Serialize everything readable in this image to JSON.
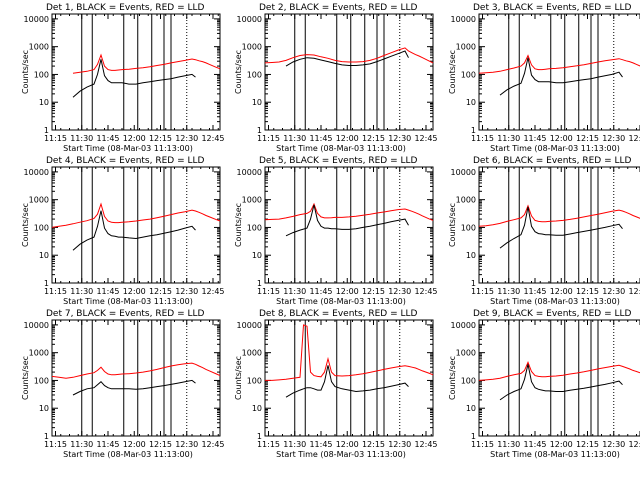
{
  "common": {
    "title_suffix": "BLACK = Events, RED = LLD",
    "xlabel": "Start Time (08-Mar-03 11:13:00)",
    "ylabel": "Counts/sec",
    "x_ticks": [
      "11:15",
      "11:30",
      "11:45",
      "12:00",
      "12:15",
      "12:30",
      "12:45"
    ],
    "y_ticks": [
      "1",
      "10",
      "100",
      "1000",
      "10000"
    ],
    "colors": {
      "events": "#000000",
      "lld": "#ff0000",
      "axes": "#000000"
    }
  },
  "chart_data": [
    {
      "type": "line",
      "title_prefix": "Det 1",
      "xlim_minutes_after_start": [
        0,
        96
      ],
      "ylim": [
        1,
        15000
      ],
      "yscale": "log",
      "solid_vlines": [
        "11:30",
        "11:36",
        "11:54",
        "12:02",
        "12:10",
        "12:17",
        "12:21"
      ],
      "dotted_vlines": [
        "12:30"
      ],
      "x": [
        0,
        4,
        8,
        12,
        16,
        20,
        24,
        26,
        28,
        30,
        32,
        34,
        36,
        38,
        40,
        44,
        48,
        52,
        56,
        60,
        64,
        68,
        72,
        76,
        80,
        82,
        84,
        86,
        88,
        90,
        94,
        96
      ],
      "series": [
        {
          "name": "LLD",
          "values": [
            null,
            null,
            null,
            110,
            120,
            130,
            150,
            230,
            500,
            200,
            150,
            140,
            140,
            145,
            150,
            155,
            165,
            175,
            190,
            210,
            230,
            260,
            290,
            320,
            360,
            340,
            310,
            290,
            260,
            230,
            180,
            160
          ]
        },
        {
          "name": "Events",
          "values": [
            null,
            null,
            null,
            15,
            25,
            35,
            45,
            100,
            350,
            90,
            60,
            50,
            50,
            50,
            50,
            45,
            45,
            50,
            55,
            60,
            65,
            70,
            80,
            90,
            100,
            80,
            null,
            null,
            null,
            null,
            null,
            null
          ]
        }
      ]
    },
    {
      "type": "line",
      "title_prefix": "Det 2",
      "xlim_minutes_after_start": [
        0,
        96
      ],
      "ylim": [
        1,
        15000
      ],
      "yscale": "log",
      "solid_vlines": [
        "11:30",
        "11:36",
        "11:54",
        "12:02",
        "12:10",
        "12:17",
        "12:21"
      ],
      "dotted_vlines": [
        "12:30"
      ],
      "x": [
        0,
        4,
        8,
        12,
        16,
        20,
        24,
        28,
        32,
        36,
        40,
        44,
        48,
        52,
        56,
        60,
        64,
        68,
        72,
        76,
        80,
        82,
        84,
        86,
        88,
        90,
        94,
        96
      ],
      "series": [
        {
          "name": "LLD",
          "values": [
            260,
            270,
            280,
            320,
            400,
            480,
            520,
            500,
            430,
            380,
            320,
            290,
            280,
            280,
            290,
            320,
            380,
            480,
            600,
            750,
            900,
            700,
            600,
            520,
            460,
            400,
            300,
            260
          ]
        },
        {
          "name": "Events",
          "values": [
            null,
            null,
            null,
            200,
            280,
            350,
            400,
            380,
            330,
            290,
            250,
            220,
            210,
            210,
            220,
            240,
            290,
            360,
            450,
            560,
            700,
            400,
            null,
            null,
            null,
            null,
            null,
            null
          ]
        }
      ]
    },
    {
      "type": "line",
      "title_prefix": "Det 3",
      "xlim_minutes_after_start": [
        0,
        96
      ],
      "ylim": [
        1,
        15000
      ],
      "yscale": "log",
      "solid_vlines": [
        "11:30",
        "11:36",
        "11:54",
        "12:02",
        "12:10",
        "12:17",
        "12:21"
      ],
      "dotted_vlines": [
        "12:30"
      ],
      "x": [
        0,
        4,
        8,
        12,
        16,
        20,
        24,
        26,
        28,
        30,
        32,
        34,
        36,
        38,
        40,
        44,
        48,
        52,
        56,
        60,
        64,
        68,
        72,
        76,
        80,
        82,
        84,
        86,
        88,
        90,
        94,
        96
      ],
      "series": [
        {
          "name": "LLD",
          "values": [
            110,
            115,
            120,
            130,
            150,
            170,
            200,
            260,
            480,
            220,
            160,
            150,
            150,
            155,
            160,
            165,
            175,
            190,
            205,
            225,
            250,
            280,
            310,
            340,
            370,
            340,
            310,
            290,
            260,
            230,
            180,
            160
          ]
        },
        {
          "name": "Events",
          "values": [
            null,
            null,
            null,
            18,
            28,
            38,
            48,
            110,
            400,
            95,
            65,
            55,
            55,
            55,
            55,
            50,
            50,
            55,
            60,
            65,
            70,
            80,
            90,
            100,
            120,
            80,
            null,
            null,
            null,
            null,
            null,
            null
          ]
        }
      ]
    },
    {
      "type": "line",
      "title_prefix": "Det 4",
      "xlim_minutes_after_start": [
        0,
        96
      ],
      "ylim": [
        1,
        15000
      ],
      "yscale": "log",
      "solid_vlines": [
        "11:30",
        "11:36",
        "11:54",
        "12:02",
        "12:10",
        "12:17",
        "12:21"
      ],
      "dotted_vlines": [
        "12:30"
      ],
      "x": [
        0,
        4,
        8,
        12,
        16,
        20,
        24,
        26,
        28,
        30,
        32,
        34,
        36,
        38,
        40,
        44,
        48,
        52,
        56,
        60,
        64,
        68,
        72,
        76,
        80,
        82,
        84,
        86,
        88,
        90,
        94,
        96
      ],
      "series": [
        {
          "name": "LLD",
          "values": [
            100,
            110,
            120,
            135,
            155,
            175,
            210,
            300,
            700,
            250,
            170,
            155,
            150,
            150,
            155,
            160,
            170,
            185,
            200,
            225,
            255,
            290,
            330,
            370,
            420,
            390,
            350,
            310,
            270,
            240,
            190,
            170
          ]
        },
        {
          "name": "Events",
          "values": [
            null,
            null,
            null,
            15,
            25,
            35,
            45,
            110,
            400,
            95,
            60,
            50,
            48,
            45,
            45,
            42,
            40,
            45,
            50,
            55,
            62,
            70,
            80,
            95,
            110,
            80,
            null,
            null,
            null,
            null,
            null,
            null
          ]
        }
      ]
    },
    {
      "type": "line",
      "title_prefix": "Det 5",
      "xlim_minutes_after_start": [
        0,
        96
      ],
      "ylim": [
        1,
        15000
      ],
      "yscale": "log",
      "solid_vlines": [
        "11:30",
        "11:36",
        "11:54",
        "12:02",
        "12:10",
        "12:17",
        "12:21"
      ],
      "dotted_vlines": [
        "12:30"
      ],
      "x": [
        0,
        4,
        8,
        12,
        16,
        20,
        24,
        26,
        28,
        30,
        32,
        34,
        36,
        38,
        40,
        44,
        48,
        52,
        56,
        60,
        64,
        68,
        72,
        76,
        80,
        82,
        84,
        86,
        88,
        90,
        94,
        96
      ],
      "series": [
        {
          "name": "LLD",
          "values": [
            190,
            195,
            200,
            220,
            250,
            290,
            320,
            380,
            700,
            320,
            240,
            220,
            220,
            225,
            230,
            230,
            240,
            255,
            275,
            300,
            330,
            360,
            400,
            440,
            460,
            420,
            380,
            340,
            300,
            260,
            200,
            180
          ]
        },
        {
          "name": "Events",
          "values": [
            null,
            null,
            null,
            50,
            65,
            80,
            95,
            200,
            650,
            180,
            110,
            95,
            95,
            90,
            90,
            85,
            85,
            90,
            100,
            110,
            125,
            140,
            160,
            180,
            200,
            120,
            null,
            null,
            null,
            null,
            null,
            null
          ]
        }
      ]
    },
    {
      "type": "line",
      "title_prefix": "Det 6",
      "xlim_minutes_after_start": [
        0,
        96
      ],
      "ylim": [
        1,
        15000
      ],
      "yscale": "log",
      "solid_vlines": [
        "11:30",
        "11:36",
        "11:54",
        "12:02",
        "12:10",
        "12:17",
        "12:21"
      ],
      "dotted_vlines": [
        "12:30"
      ],
      "x": [
        0,
        4,
        8,
        12,
        16,
        20,
        24,
        26,
        28,
        30,
        32,
        34,
        36,
        38,
        40,
        44,
        48,
        52,
        56,
        60,
        64,
        68,
        72,
        76,
        80,
        82,
        84,
        86,
        88,
        90,
        94,
        96
      ],
      "series": [
        {
          "name": "LLD",
          "values": [
            110,
            115,
            125,
            140,
            165,
            190,
            220,
            290,
            600,
            260,
            180,
            165,
            160,
            160,
            165,
            170,
            180,
            195,
            215,
            240,
            270,
            300,
            340,
            380,
            420,
            390,
            350,
            310,
            270,
            240,
            190,
            170
          ]
        },
        {
          "name": "Events",
          "values": [
            null,
            null,
            null,
            18,
            28,
            40,
            55,
            120,
            550,
            110,
            70,
            60,
            58,
            55,
            55,
            52,
            52,
            58,
            65,
            72,
            80,
            90,
            100,
            115,
            130,
            90,
            null,
            null,
            null,
            null,
            null,
            null
          ]
        }
      ]
    },
    {
      "type": "line",
      "title_prefix": "Det 7",
      "xlim_minutes_after_start": [
        0,
        96
      ],
      "ylim": [
        1,
        15000
      ],
      "yscale": "log",
      "solid_vlines": [
        "11:30",
        "11:36",
        "11:54",
        "12:02",
        "12:10",
        "12:17",
        "12:21"
      ],
      "dotted_vlines": [
        "12:30"
      ],
      "x": [
        0,
        4,
        8,
        12,
        16,
        20,
        24,
        26,
        28,
        30,
        32,
        34,
        36,
        38,
        40,
        44,
        48,
        52,
        56,
        60,
        64,
        68,
        72,
        76,
        80,
        82,
        84,
        86,
        88,
        90,
        94,
        96
      ],
      "series": [
        {
          "name": "LLD",
          "values": [
            140,
            130,
            120,
            130,
            150,
            170,
            190,
            230,
            300,
            210,
            170,
            160,
            160,
            165,
            170,
            175,
            185,
            200,
            220,
            250,
            290,
            330,
            370,
            400,
            420,
            380,
            330,
            290,
            250,
            220,
            170,
            150
          ]
        },
        {
          "name": "Events",
          "values": [
            null,
            null,
            null,
            30,
            40,
            50,
            55,
            70,
            90,
            65,
            55,
            50,
            50,
            50,
            50,
            50,
            48,
            50,
            55,
            60,
            65,
            72,
            80,
            90,
            100,
            80,
            null,
            null,
            null,
            null,
            null,
            null
          ]
        }
      ]
    },
    {
      "type": "line",
      "title_prefix": "Det 8",
      "xlim_minutes_after_start": [
        0,
        96
      ],
      "ylim": [
        1,
        15000
      ],
      "yscale": "log",
      "solid_vlines": [
        "11:30",
        "11:36",
        "11:54",
        "12:02",
        "12:10",
        "12:17",
        "12:21"
      ],
      "dotted_vlines": [
        "12:30"
      ],
      "x": [
        0,
        4,
        8,
        12,
        16,
        20,
        22,
        24,
        26,
        28,
        30,
        32,
        34,
        36,
        38,
        40,
        44,
        48,
        52,
        56,
        60,
        64,
        68,
        72,
        76,
        80,
        82,
        84,
        86,
        88,
        90,
        94,
        96
      ],
      "series": [
        {
          "name": "LLD",
          "values": [
            100,
            100,
            105,
            110,
            120,
            130,
            10000,
            9000,
            200,
            150,
            140,
            135,
            200,
            600,
            200,
            150,
            145,
            150,
            160,
            175,
            195,
            220,
            250,
            280,
            310,
            340,
            320,
            300,
            280,
            250,
            220,
            180,
            160
          ]
        },
        {
          "name": "Events",
          "values": [
            null,
            null,
            null,
            25,
            35,
            45,
            50,
            55,
            55,
            50,
            45,
            45,
            90,
            350,
            90,
            60,
            50,
            45,
            40,
            42,
            45,
            50,
            55,
            62,
            70,
            80,
            60,
            null,
            null,
            null,
            null,
            null,
            null
          ]
        }
      ]
    },
    {
      "type": "line",
      "title_prefix": "Det 9",
      "xlim_minutes_after_start": [
        0,
        96
      ],
      "ylim": [
        1,
        15000
      ],
      "yscale": "log",
      "solid_vlines": [
        "11:30",
        "11:36",
        "11:54",
        "12:02",
        "12:10",
        "12:17",
        "12:21"
      ],
      "dotted_vlines": [
        "12:30"
      ],
      "x": [
        0,
        4,
        8,
        12,
        16,
        20,
        24,
        26,
        28,
        30,
        32,
        34,
        36,
        38,
        40,
        44,
        48,
        52,
        56,
        60,
        64,
        68,
        72,
        76,
        80,
        82,
        84,
        86,
        88,
        90,
        94,
        96
      ],
      "series": [
        {
          "name": "LLD",
          "values": [
            100,
            105,
            110,
            120,
            140,
            160,
            180,
            230,
            450,
            210,
            150,
            140,
            135,
            135,
            140,
            145,
            155,
            170,
            185,
            205,
            230,
            260,
            290,
            320,
            350,
            320,
            290,
            260,
            230,
            210,
            170,
            150
          ]
        },
        {
          "name": "Events",
          "values": [
            null,
            null,
            null,
            20,
            30,
            40,
            50,
            110,
            380,
            90,
            55,
            48,
            45,
            42,
            42,
            40,
            40,
            44,
            48,
            52,
            58,
            65,
            72,
            82,
            95,
            70,
            null,
            null,
            null,
            null,
            null,
            null
          ]
        }
      ]
    }
  ]
}
